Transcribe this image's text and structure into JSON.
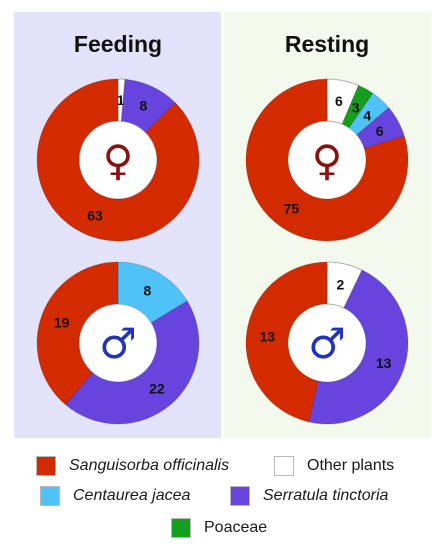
{
  "colors": {
    "sanguisorba": "#d42a00",
    "other": "#ffffff",
    "centaurea": "#4fc3f7",
    "serratula": "#6644dd",
    "poaceae": "#149e1c",
    "panel_feeding": "#e3e3fb",
    "panel_resting": "#f4f9ee",
    "symbol": "#8b1010",
    "symbol_male": "#2233bb"
  },
  "chart_data": {
    "type": "pie",
    "variant": "donut",
    "panels": [
      {
        "title": "Feeding",
        "key": "feeding"
      },
      {
        "title": "Resting",
        "key": "resting"
      }
    ],
    "rows": [
      {
        "sex": "female",
        "symbol": "♀"
      },
      {
        "sex": "male",
        "symbol": "♂"
      }
    ],
    "charts": [
      {
        "panel": "feeding",
        "sex": "female",
        "symbol": "♀",
        "slices": [
          {
            "category": "Other plants",
            "value": 1,
            "color": "#ffffff",
            "label": "1"
          },
          {
            "category": "Serratula tinctoria",
            "value": 8,
            "color": "#6644dd",
            "label": "8"
          },
          {
            "category": "Sanguisorba officinalis",
            "value": 63,
            "color": "#d42a00",
            "label": "63"
          }
        ]
      },
      {
        "panel": "resting",
        "sex": "female",
        "symbol": "♀",
        "slices": [
          {
            "category": "Other plants",
            "value": 6,
            "color": "#ffffff",
            "label": "6"
          },
          {
            "category": "Poaceae",
            "value": 3,
            "color": "#149e1c",
            "label": "3"
          },
          {
            "category": "Centaurea jacea",
            "value": 4,
            "color": "#4fc3f7",
            "label": "4"
          },
          {
            "category": "Serratula tinctoria",
            "value": 6,
            "color": "#6644dd",
            "label": "6"
          },
          {
            "category": "Sanguisorba officinalis",
            "value": 75,
            "color": "#d42a00",
            "label": "75"
          }
        ]
      },
      {
        "panel": "feeding",
        "sex": "male",
        "symbol": "♂",
        "slices": [
          {
            "category": "Centaurea jacea",
            "value": 8,
            "color": "#4fc3f7",
            "label": "8"
          },
          {
            "category": "Serratula tinctoria",
            "value": 22,
            "color": "#6644dd",
            "label": "22"
          },
          {
            "category": "Sanguisorba officinalis",
            "value": 19,
            "color": "#d42a00",
            "label": "19"
          }
        ]
      },
      {
        "panel": "resting",
        "sex": "male",
        "symbol": "♂",
        "slices": [
          {
            "category": "Other plants",
            "value": 2,
            "color": "#ffffff",
            "label": "2"
          },
          {
            "category": "Serratula tinctoria",
            "value": 13,
            "color": "#6644dd",
            "label": "13"
          },
          {
            "category": "Sanguisorba officinalis",
            "value": 13,
            "color": "#d42a00",
            "label": "13"
          }
        ]
      }
    ],
    "legend": [
      {
        "label": "Sanguisorba officinalis",
        "color": "#d42a00",
        "italic": true
      },
      {
        "label": "Other plants",
        "color": "#ffffff",
        "italic": false
      },
      {
        "label": "Centaurea jacea",
        "color": "#4fc3f7",
        "italic": true
      },
      {
        "label": "Serratula tinctoria",
        "color": "#6644dd",
        "italic": true
      },
      {
        "label": "Poaceae",
        "color": "#149e1c",
        "italic": false
      }
    ],
    "legend_position": "bottom"
  }
}
